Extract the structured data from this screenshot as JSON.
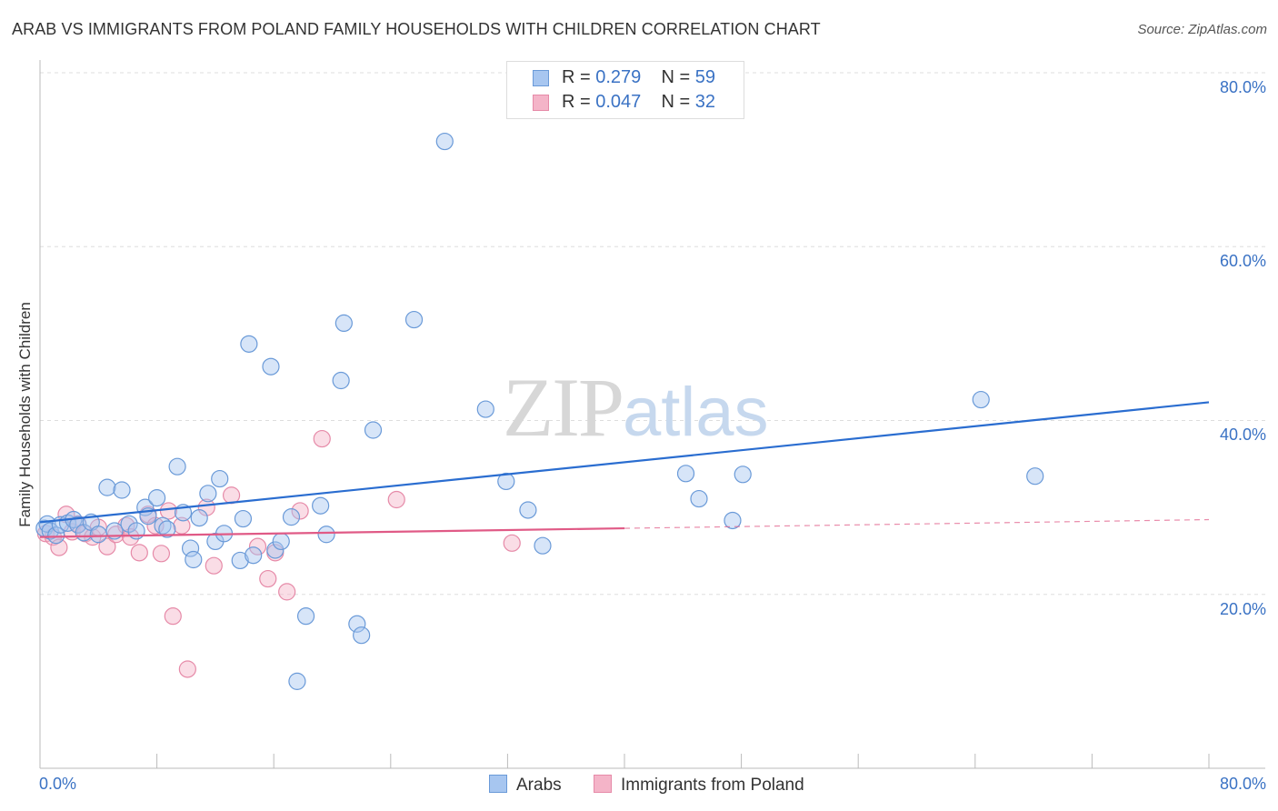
{
  "header": {
    "title": "ARAB VS IMMIGRANTS FROM POLAND FAMILY HOUSEHOLDS WITH CHILDREN CORRELATION CHART",
    "source": "Source: ZipAtlas.com"
  },
  "watermark": {
    "zip": "ZIP",
    "atlas": "atlas"
  },
  "stats": {
    "rows": [
      {
        "r_label": "R = ",
        "r_value": "0.279",
        "n_label": "N = ",
        "n_value": "59",
        "color": "#a7c6f0"
      },
      {
        "r_label": "R = ",
        "r_value": "0.047",
        "n_label": "N = ",
        "n_value": "32",
        "color": "#f4b4c8"
      }
    ]
  },
  "legend": {
    "items": [
      {
        "label": "Arabs"
      },
      {
        "label": "Immigrants from Poland"
      }
    ]
  },
  "colors": {
    "arab_fill": "#a7c6f0",
    "arab_stroke": "#6a9ad8",
    "arab_line": "#2a6dd0",
    "poland_fill": "#f4b4c8",
    "poland_stroke": "#e68aa8",
    "poland_line": "#e05a86",
    "tick_text": "#3a72c4",
    "grid": "#dddddd"
  },
  "chart_data": {
    "type": "scatter",
    "title": "ARAB VS IMMIGRANTS FROM POLAND FAMILY HOUSEHOLDS WITH CHILDREN CORRELATION CHART",
    "xlabel": "",
    "ylabel": "Family Households with Children",
    "xlim": [
      0,
      80
    ],
    "ylim": [
      0,
      80
    ],
    "x_tick_labels": [
      "0.0%",
      "80.0%"
    ],
    "y_ticks": [
      20,
      40,
      60,
      80
    ],
    "y_tick_labels": [
      "20.0%",
      "40.0%",
      "60.0%",
      "80.0%"
    ],
    "grid": true,
    "legend_position": "bottom-center",
    "series": [
      {
        "name": "Arabs",
        "r": 0.279,
        "n": 59,
        "trend": {
          "x": [
            0,
            80
          ],
          "y": [
            28.3,
            42.1
          ],
          "solid_to": 80
        },
        "points": [
          [
            0.3,
            27.6
          ],
          [
            0.5,
            28.1
          ],
          [
            0.7,
            27.3
          ],
          [
            1.1,
            26.8
          ],
          [
            1.4,
            28.0
          ],
          [
            1.9,
            28.2
          ],
          [
            2.3,
            28.6
          ],
          [
            2.6,
            28.0
          ],
          [
            3.0,
            27.1
          ],
          [
            3.5,
            28.3
          ],
          [
            4.0,
            26.9
          ],
          [
            4.6,
            32.3
          ],
          [
            5.1,
            27.3
          ],
          [
            5.6,
            32.0
          ],
          [
            6.1,
            28.1
          ],
          [
            6.6,
            27.3
          ],
          [
            7.2,
            30.0
          ],
          [
            7.4,
            29.0
          ],
          [
            8.0,
            31.1
          ],
          [
            8.4,
            27.9
          ],
          [
            8.7,
            27.5
          ],
          [
            9.4,
            34.7
          ],
          [
            9.8,
            29.4
          ],
          [
            10.3,
            25.3
          ],
          [
            10.5,
            24.0
          ],
          [
            10.9,
            28.8
          ],
          [
            11.5,
            31.6
          ],
          [
            12.0,
            26.1
          ],
          [
            12.3,
            33.3
          ],
          [
            12.6,
            27.0
          ],
          [
            13.7,
            23.9
          ],
          [
            13.9,
            28.7
          ],
          [
            14.3,
            48.8
          ],
          [
            14.6,
            24.5
          ],
          [
            15.8,
            46.2
          ],
          [
            16.1,
            25.1
          ],
          [
            16.5,
            26.1
          ],
          [
            17.2,
            28.9
          ],
          [
            18.2,
            17.5
          ],
          [
            19.2,
            30.2
          ],
          [
            20.6,
            44.6
          ],
          [
            20.8,
            51.2
          ],
          [
            21.7,
            16.6
          ],
          [
            22.0,
            15.3
          ],
          [
            22.8,
            38.9
          ],
          [
            25.6,
            51.6
          ],
          [
            27.7,
            72.1
          ],
          [
            30.5,
            41.3
          ],
          [
            31.9,
            33.0
          ],
          [
            33.4,
            29.7
          ],
          [
            34.4,
            25.6
          ],
          [
            44.2,
            33.9
          ],
          [
            45.1,
            31.0
          ],
          [
            47.4,
            28.5
          ],
          [
            48.1,
            33.8
          ],
          [
            64.4,
            42.4
          ],
          [
            68.1,
            33.6
          ],
          [
            17.6,
            10.0
          ],
          [
            19.6,
            26.9
          ]
        ]
      },
      {
        "name": "Immigrants from Poland",
        "r": 0.047,
        "n": 32,
        "trend": {
          "x": [
            0,
            80
          ],
          "y": [
            26.6,
            28.6
          ],
          "solid_to": 40
        },
        "points": [
          [
            0.4,
            27.0
          ],
          [
            0.9,
            26.6
          ],
          [
            1.3,
            25.4
          ],
          [
            1.8,
            29.2
          ],
          [
            2.2,
            27.2
          ],
          [
            2.6,
            28.1
          ],
          [
            3.1,
            27.0
          ],
          [
            3.6,
            26.6
          ],
          [
            4.0,
            27.7
          ],
          [
            4.6,
            25.5
          ],
          [
            5.2,
            26.9
          ],
          [
            5.9,
            27.9
          ],
          [
            6.2,
            26.6
          ],
          [
            6.8,
            24.8
          ],
          [
            7.4,
            29.2
          ],
          [
            7.9,
            27.9
          ],
          [
            8.3,
            24.7
          ],
          [
            8.8,
            29.6
          ],
          [
            9.1,
            17.5
          ],
          [
            9.7,
            27.9
          ],
          [
            10.1,
            11.4
          ],
          [
            11.4,
            30.0
          ],
          [
            11.9,
            23.3
          ],
          [
            13.1,
            31.4
          ],
          [
            14.9,
            25.5
          ],
          [
            15.6,
            21.8
          ],
          [
            16.1,
            24.8
          ],
          [
            16.9,
            20.3
          ],
          [
            17.8,
            29.6
          ],
          [
            19.3,
            37.9
          ],
          [
            24.4,
            30.9
          ],
          [
            32.3,
            25.9
          ]
        ]
      }
    ]
  }
}
